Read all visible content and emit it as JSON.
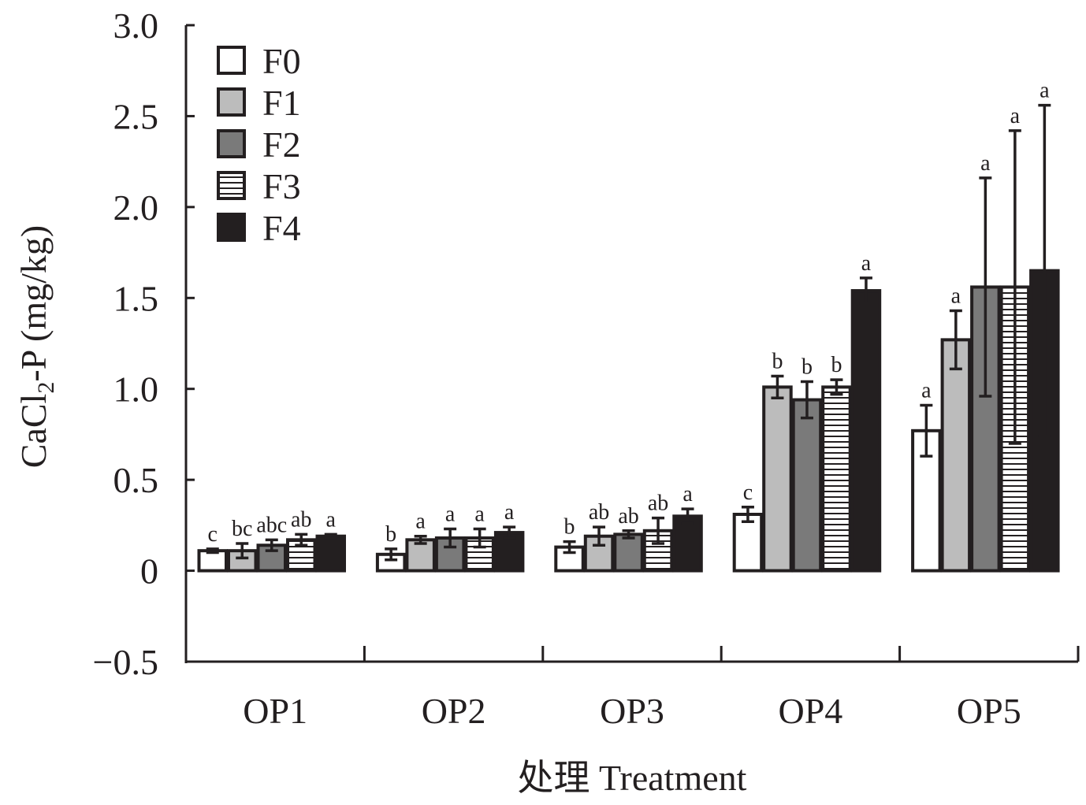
{
  "chart_data": {
    "type": "bar",
    "title": "",
    "xlabel": "处理 Treatment",
    "ylabel_main": "CaCl",
    "ylabel_sub": "2",
    "ylabel_rest": "-P (mg/kg)",
    "ylim": [
      -0.5,
      3.0
    ],
    "yticks": [
      {
        "value": 3.0,
        "label": "3.0"
      },
      {
        "value": 2.5,
        "label": "2.5"
      },
      {
        "value": 2.0,
        "label": "2.0"
      },
      {
        "value": 1.5,
        "label": "1.5"
      },
      {
        "value": 1.0,
        "label": "1.0"
      },
      {
        "value": 0.5,
        "label": "0.5"
      },
      {
        "value": 0,
        "label": "0"
      },
      {
        "value": -0.5,
        "label": "−0.5"
      }
    ],
    "categories": [
      "OP1",
      "OP2",
      "OP3",
      "OP4",
      "OP5"
    ],
    "legend_position": "top-left",
    "series": [
      {
        "name": "F0",
        "pattern": "white",
        "values": [
          0.11,
          0.09,
          0.13,
          0.31,
          0.77
        ],
        "errors": [
          0.01,
          0.03,
          0.03,
          0.04,
          0.14
        ],
        "labels": [
          "c",
          "b",
          "b",
          "c",
          "a"
        ]
      },
      {
        "name": "F1",
        "pattern": "light",
        "values": [
          0.11,
          0.17,
          0.19,
          1.01,
          1.27
        ],
        "errors": [
          0.04,
          0.02,
          0.05,
          0.06,
          0.16
        ],
        "labels": [
          "bc",
          "a",
          "ab",
          "b",
          "a"
        ]
      },
      {
        "name": "F2",
        "pattern": "mid",
        "values": [
          0.14,
          0.18,
          0.2,
          0.94,
          1.56
        ],
        "errors": [
          0.03,
          0.05,
          0.02,
          0.1,
          0.6
        ],
        "labels": [
          "abc",
          "a",
          "ab",
          "b",
          "a"
        ]
      },
      {
        "name": "F3",
        "pattern": "stripes",
        "values": [
          0.17,
          0.18,
          0.22,
          1.01,
          1.56
        ],
        "errors": [
          0.03,
          0.05,
          0.07,
          0.04,
          0.86
        ],
        "labels": [
          "ab",
          "a",
          "ab",
          "b",
          "a"
        ]
      },
      {
        "name": "F4",
        "pattern": "black",
        "values": [
          0.19,
          0.21,
          0.3,
          1.54,
          1.65
        ],
        "errors": [
          0.01,
          0.03,
          0.04,
          0.07,
          0.91
        ],
        "labels": [
          "a",
          "a",
          "a",
          "a",
          "a"
        ]
      }
    ]
  }
}
